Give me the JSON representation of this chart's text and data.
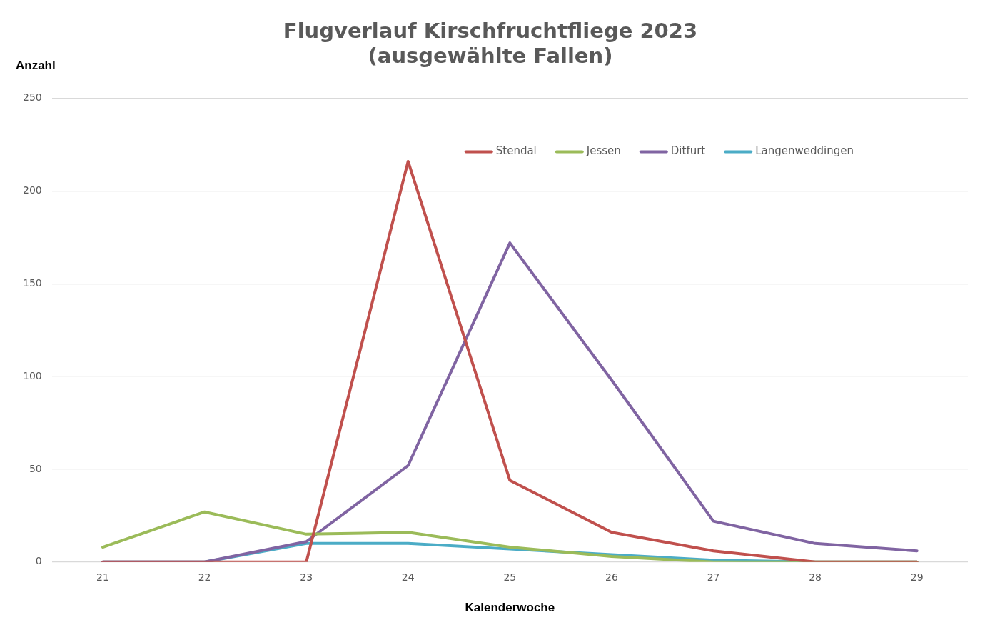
{
  "chart_data": {
    "type": "line",
    "title": [
      "Flugverlauf Kirschfruchtfliege 2023",
      "(ausgewählte Fallen)"
    ],
    "xlabel": "Kalenderwoche",
    "ylabel": "Anzahl",
    "categories": [
      "21",
      "22",
      "23",
      "24",
      "25",
      "26",
      "27",
      "28",
      "29"
    ],
    "series": [
      {
        "name": "Stendal",
        "color": "#c0504d",
        "values": [
          0,
          0,
          0,
          216,
          44,
          16,
          6,
          0,
          0
        ]
      },
      {
        "name": "Jessen",
        "color": "#9bbb59",
        "values": [
          8,
          27,
          15,
          16,
          8,
          3,
          0,
          0,
          0
        ]
      },
      {
        "name": "Ditfurt",
        "color": "#8064a2",
        "values": [
          0,
          0,
          11,
          52,
          172,
          98,
          22,
          10,
          6
        ]
      },
      {
        "name": "Langenweddingen",
        "color": "#4bacc6",
        "values": [
          0,
          0,
          10,
          10,
          7,
          4,
          1,
          0,
          0
        ]
      }
    ],
    "ylim": [
      0,
      250
    ],
    "yticks": [
      0,
      50,
      100,
      150,
      200,
      250
    ],
    "grid": "y",
    "legend": "top right",
    "marker": "none",
    "line_style": "solid"
  }
}
